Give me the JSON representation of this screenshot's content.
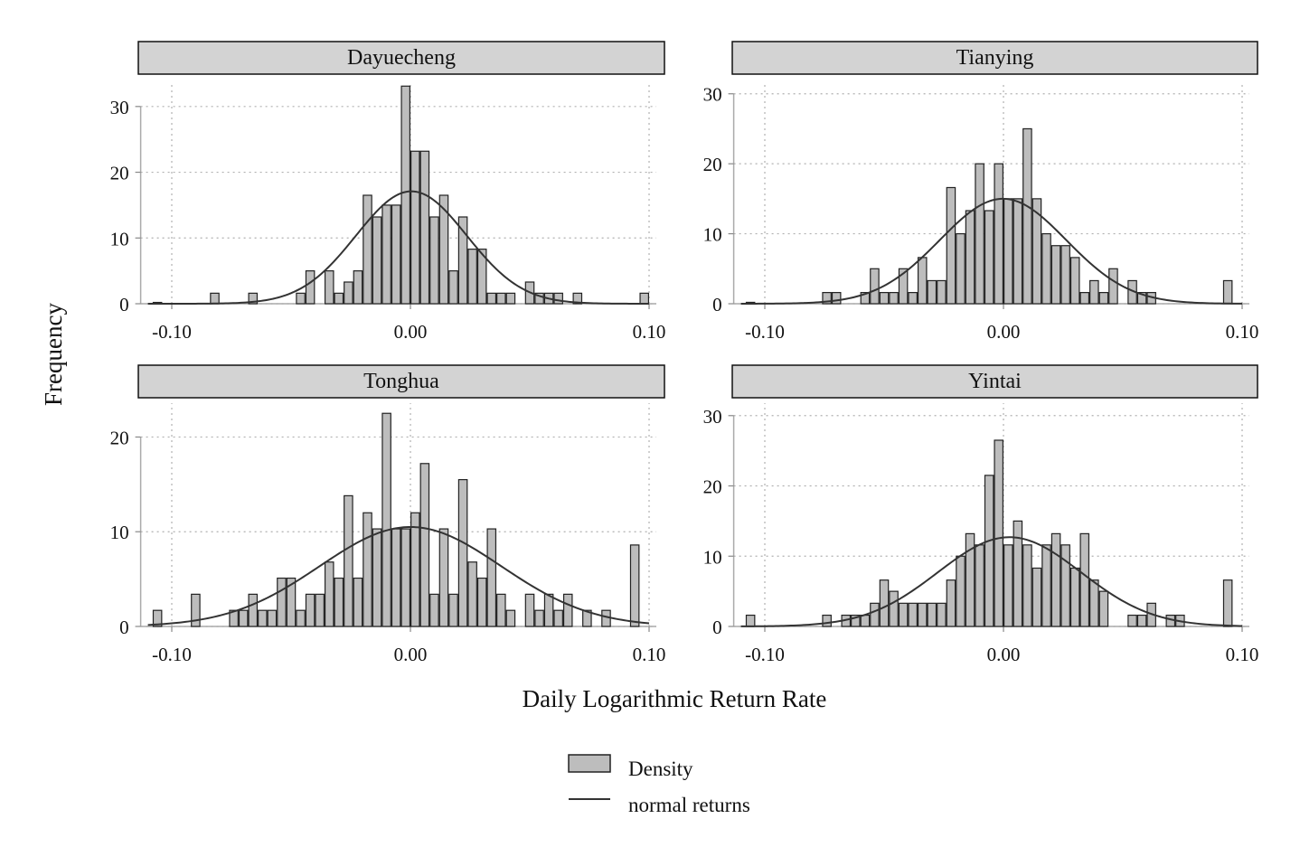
{
  "figure": {
    "ylabel": "Frequency",
    "xlabel": "Daily Logarithmic Return Rate",
    "legend": {
      "placement": "bottom-center",
      "items": [
        {
          "label": "Density",
          "kind": "bar",
          "fill": "#bdbdbd"
        },
        {
          "label": "normal returns",
          "kind": "line",
          "color": "#333333"
        }
      ]
    },
    "colors": {
      "bar_fill": "#bdbdbd",
      "bar_stroke": "#222222",
      "strip_fill": "#d3d3d3",
      "curve": "#333333",
      "grid": "#b0b0b0"
    }
  },
  "chart_data": [
    {
      "type": "bar",
      "title": "Dayuecheng",
      "xlim": [
        -0.11,
        0.1
      ],
      "ylim": [
        0,
        33
      ],
      "xticks": [
        -0.1,
        0.0,
        0.1
      ],
      "xtick_labels": [
        "-0.10",
        "0.00",
        "0.10"
      ],
      "yticks": [
        0,
        10,
        20,
        30
      ],
      "ytick_labels": [
        "0",
        "10",
        "20",
        "30"
      ],
      "bin_width": 0.004,
      "grid": true,
      "x": [
        -0.106,
        -0.082,
        -0.066,
        -0.046,
        -0.042,
        -0.034,
        -0.03,
        -0.026,
        -0.022,
        -0.018,
        -0.014,
        -0.01,
        -0.006,
        -0.002,
        0.002,
        0.006,
        0.01,
        0.014,
        0.018,
        0.022,
        0.026,
        0.03,
        0.034,
        0.038,
        0.042,
        0.05,
        0.054,
        0.058,
        0.062,
        0.07,
        0.098
      ],
      "values": [
        0.2,
        1.6,
        1.6,
        1.6,
        5,
        5,
        1.6,
        3.3,
        5,
        16.5,
        13.2,
        15,
        15,
        33.1,
        23.2,
        23.2,
        13.2,
        16.5,
        5,
        13.2,
        8.3,
        8.3,
        1.6,
        1.6,
        1.6,
        3.3,
        1.6,
        1.6,
        1.6,
        1.6,
        1.6
      ],
      "normal_curve": {
        "mean": 0.0004,
        "sd": 0.0232,
        "peak": 17.1
      }
    },
    {
      "type": "bar",
      "title": "Tianying",
      "xlim": [
        -0.11,
        0.1
      ],
      "ylim": [
        0,
        31
      ],
      "xticks": [
        -0.1,
        0.0,
        0.1
      ],
      "xtick_labels": [
        "-0.10",
        "0.00",
        "0.10"
      ],
      "yticks": [
        0,
        10,
        20,
        30
      ],
      "ytick_labels": [
        "0",
        "10",
        "20",
        "30"
      ],
      "bin_width": 0.004,
      "grid": true,
      "x": [
        -0.106,
        -0.074,
        -0.07,
        -0.058,
        -0.054,
        -0.05,
        -0.046,
        -0.042,
        -0.038,
        -0.034,
        -0.03,
        -0.026,
        -0.022,
        -0.018,
        -0.014,
        -0.01,
        -0.006,
        -0.002,
        0.002,
        0.006,
        0.01,
        0.014,
        0.018,
        0.022,
        0.026,
        0.03,
        0.034,
        0.038,
        0.042,
        0.046,
        0.054,
        0.058,
        0.062,
        0.094
      ],
      "values": [
        0.2,
        1.6,
        1.6,
        1.6,
        5,
        1.6,
        1.6,
        5,
        1.6,
        6.6,
        3.3,
        3.3,
        16.6,
        10,
        13.3,
        20,
        13.3,
        20,
        15,
        15,
        25,
        15,
        10,
        8.3,
        8.3,
        6.6,
        1.6,
        3.3,
        1.6,
        5,
        3.3,
        1.6,
        1.6,
        3.3
      ],
      "normal_curve": {
        "mean": -0.0002,
        "sd": 0.0265,
        "peak": 15
      }
    },
    {
      "type": "bar",
      "title": "Tonghua",
      "xlim": [
        -0.11,
        0.1
      ],
      "ylim": [
        0,
        23
      ],
      "xticks": [
        -0.1,
        0.0,
        0.1
      ],
      "xtick_labels": [
        "-0.10",
        "0.00",
        "0.10"
      ],
      "yticks": [
        0,
        10,
        20
      ],
      "ytick_labels": [
        "0",
        "10",
        "20"
      ],
      "bin_width": 0.004,
      "grid": true,
      "x": [
        -0.106,
        -0.09,
        -0.074,
        -0.07,
        -0.066,
        -0.062,
        -0.058,
        -0.054,
        -0.05,
        -0.046,
        -0.042,
        -0.038,
        -0.034,
        -0.03,
        -0.026,
        -0.022,
        -0.018,
        -0.014,
        -0.01,
        -0.006,
        -0.002,
        0.002,
        0.006,
        0.01,
        0.014,
        0.018,
        0.022,
        0.026,
        0.03,
        0.034,
        0.038,
        0.042,
        0.05,
        0.054,
        0.058,
        0.062,
        0.066,
        0.074,
        0.082,
        0.094
      ],
      "values": [
        1.7,
        3.4,
        1.7,
        1.7,
        3.4,
        1.7,
        1.7,
        5.1,
        5.1,
        1.7,
        3.4,
        3.4,
        6.8,
        5.1,
        13.8,
        5.1,
        12,
        10.3,
        22.5,
        10.3,
        10.3,
        12,
        17.2,
        3.4,
        10.3,
        3.4,
        15.5,
        6.8,
        5.1,
        10.3,
        3.4,
        1.7,
        3.4,
        1.7,
        3.4,
        1.7,
        3.4,
        1.7,
        1.7,
        8.6
      ],
      "normal_curve": {
        "mean": 0.0,
        "sd": 0.038,
        "peak": 10.5
      }
    },
    {
      "type": "bar",
      "title": "Yintai",
      "xlim": [
        -0.11,
        0.1
      ],
      "ylim": [
        0,
        31
      ],
      "xticks": [
        -0.1,
        0.0,
        0.1
      ],
      "xtick_labels": [
        "-0.10",
        "0.00",
        "0.10"
      ],
      "yticks": [
        0,
        10,
        20,
        30
      ],
      "ytick_labels": [
        "0",
        "10",
        "20",
        "30"
      ],
      "bin_width": 0.004,
      "grid": true,
      "x": [
        -0.106,
        -0.074,
        -0.066,
        -0.062,
        -0.058,
        -0.054,
        -0.05,
        -0.046,
        -0.042,
        -0.038,
        -0.034,
        -0.03,
        -0.026,
        -0.022,
        -0.018,
        -0.014,
        -0.01,
        -0.006,
        -0.002,
        0.002,
        0.006,
        0.01,
        0.014,
        0.018,
        0.022,
        0.026,
        0.03,
        0.034,
        0.038,
        0.042,
        0.054,
        0.058,
        0.062,
        0.07,
        0.074,
        0.094
      ],
      "values": [
        1.6,
        1.6,
        1.6,
        1.6,
        1.6,
        3.3,
        6.6,
        5,
        3.3,
        3.3,
        3.3,
        3.3,
        3.3,
        6.6,
        10,
        13.2,
        11.6,
        21.5,
        26.5,
        11.6,
        15,
        11.6,
        8.3,
        11.6,
        13.2,
        11.6,
        8.3,
        13.2,
        6.6,
        5,
        1.6,
        1.6,
        3.3,
        1.6,
        1.6,
        6.6
      ],
      "normal_curve": {
        "mean": 0.0025,
        "sd": 0.03,
        "peak": 12.7
      }
    }
  ]
}
